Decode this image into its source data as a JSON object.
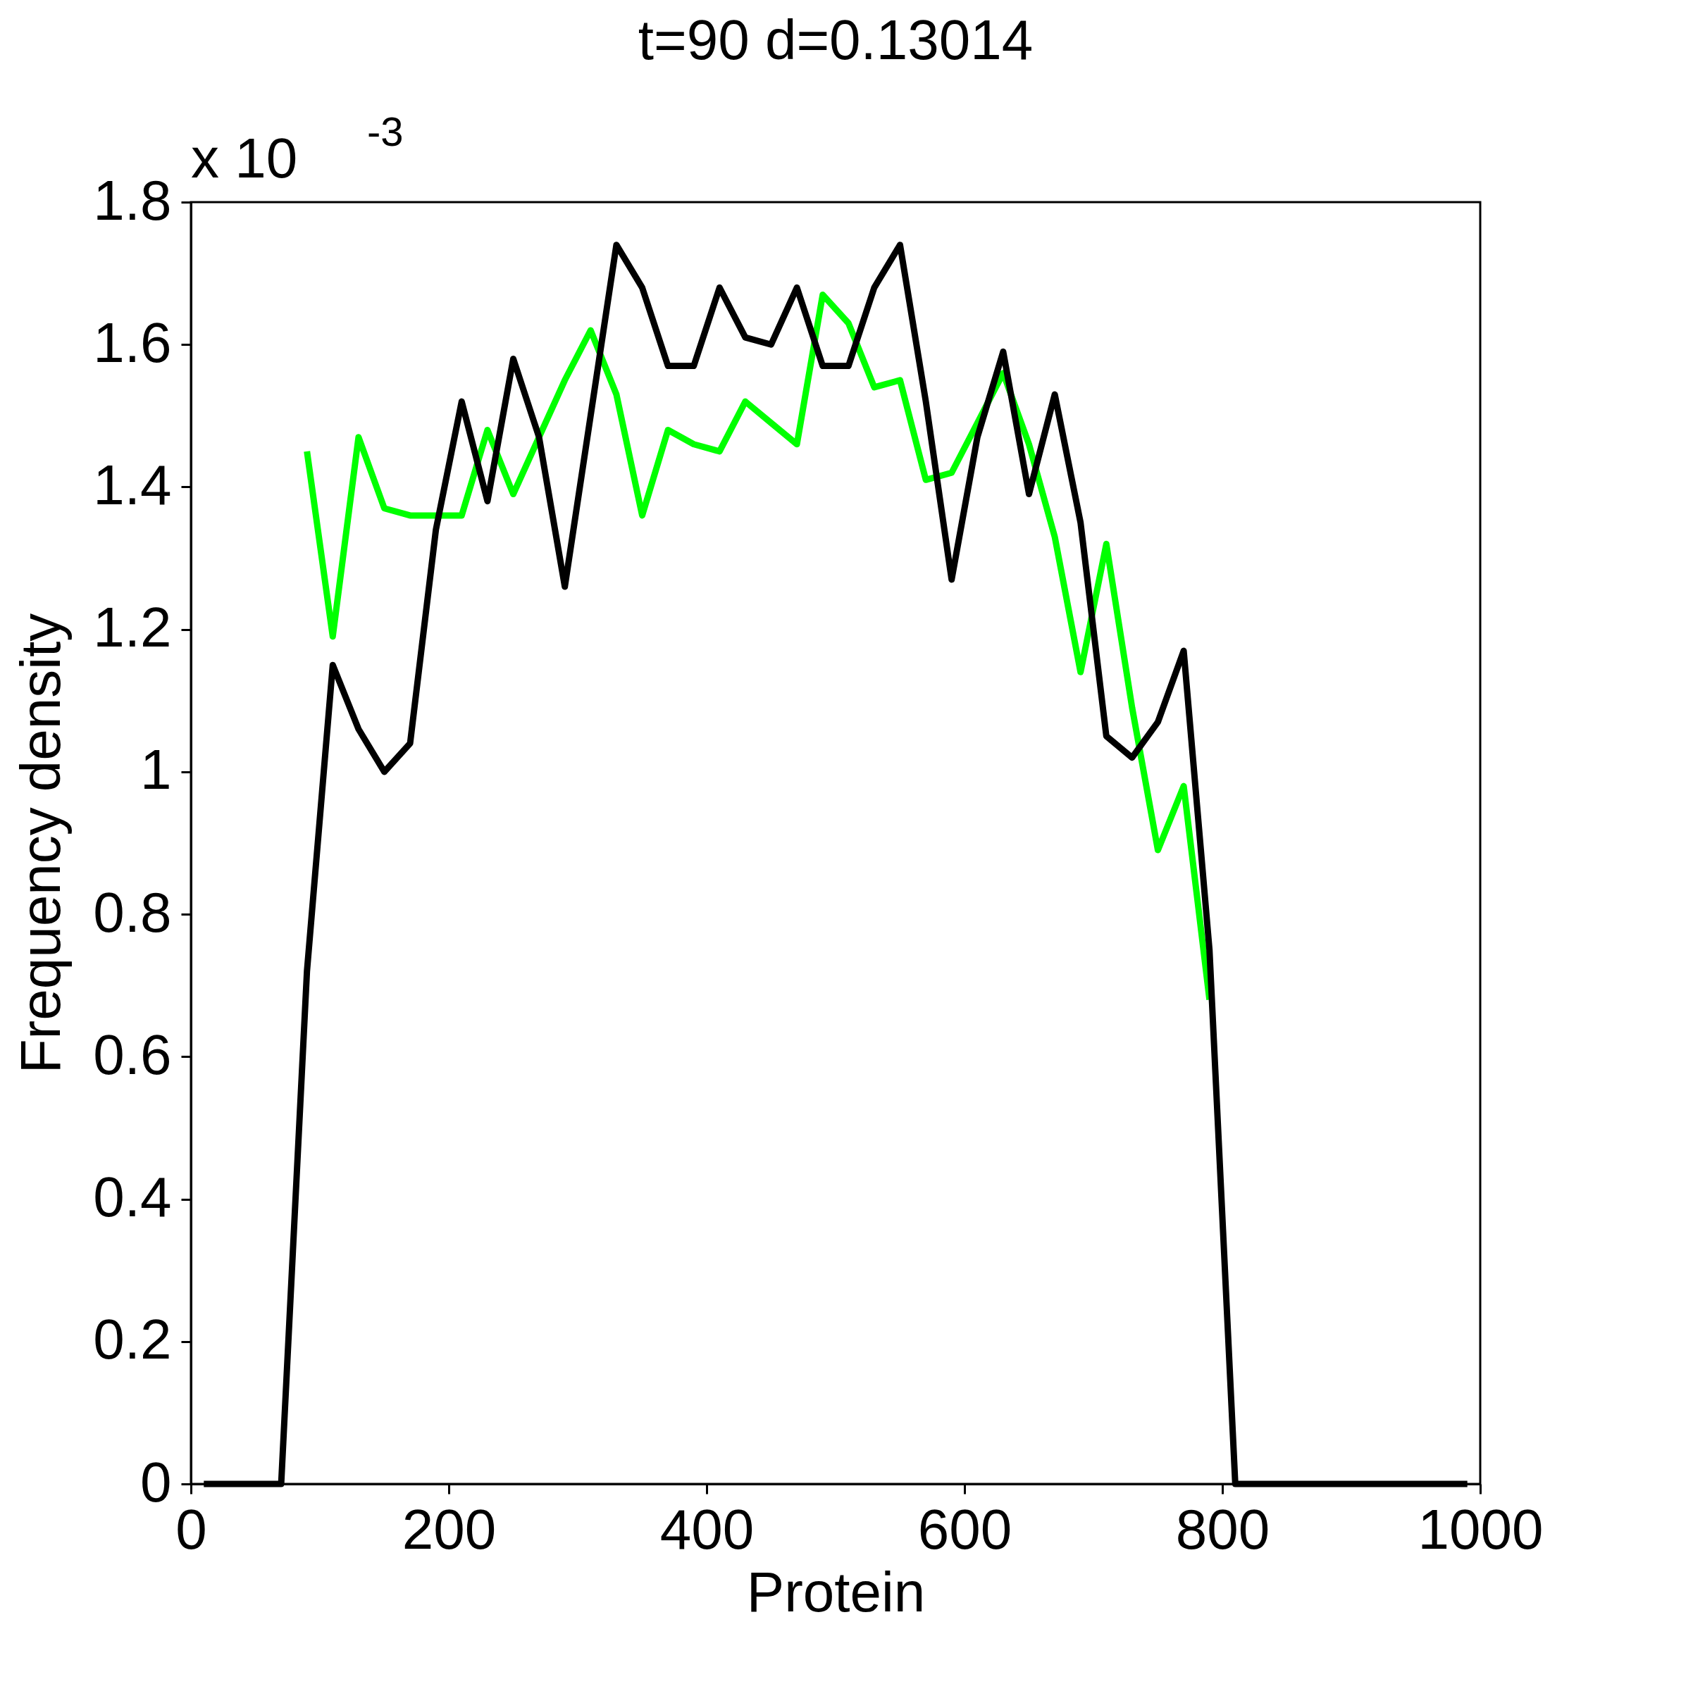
{
  "chart_data": {
    "type": "line",
    "title": "t=90 d=0.13014",
    "xlabel": "Protein",
    "ylabel": "Frequency density",
    "annotations": [
      "x 10$^{-3}$"
    ],
    "xlim": [
      0,
      1000
    ],
    "xticks": [
      0,
      200,
      400,
      600,
      800,
      1000
    ],
    "ylim": [
      0,
      1.8
    ],
    "yticks": [
      0,
      0.2,
      0.4,
      0.6,
      0.8,
      1,
      1.2,
      1.4,
      1.6,
      1.8
    ],
    "grid": false,
    "marker": "none",
    "line_style": "solid",
    "series": [
      {
        "color": "#00ff00",
        "x": [
          90,
          110,
          130,
          150,
          170,
          190,
          210,
          230,
          250,
          270,
          290,
          310,
          330,
          350,
          370,
          390,
          410,
          430,
          450,
          470,
          490,
          510,
          530,
          550,
          570,
          590,
          610,
          630,
          650,
          670,
          690,
          710,
          730,
          750,
          770,
          790
        ],
        "values": [
          1.45,
          1.19,
          1.47,
          1.37,
          1.36,
          1.36,
          1.36,
          1.48,
          1.39,
          1.47,
          1.55,
          1.62,
          1.53,
          1.36,
          1.48,
          1.46,
          1.45,
          1.52,
          1.49,
          1.46,
          1.67,
          1.63,
          1.54,
          1.55,
          1.41,
          1.42,
          1.49,
          1.56,
          1.46,
          1.33,
          1.14,
          1.32,
          1.09,
          0.89,
          0.98,
          0.68
        ]
      },
      {
        "color": "#000000",
        "x": [
          10,
          30,
          50,
          70,
          90,
          110,
          130,
          150,
          170,
          190,
          210,
          230,
          250,
          270,
          290,
          310,
          330,
          350,
          370,
          390,
          410,
          430,
          450,
          470,
          490,
          510,
          530,
          550,
          570,
          590,
          610,
          630,
          650,
          670,
          690,
          710,
          730,
          750,
          770,
          790,
          810,
          830,
          850,
          870,
          890,
          910,
          930,
          950,
          970,
          990
        ],
        "values": [
          0,
          0,
          0,
          0,
          0.72,
          1.15,
          1.06,
          1.0,
          1.04,
          1.34,
          1.52,
          1.38,
          1.58,
          1.47,
          1.26,
          1.5,
          1.74,
          1.68,
          1.57,
          1.57,
          1.68,
          1.61,
          1.6,
          1.68,
          1.57,
          1.57,
          1.68,
          1.74,
          1.52,
          1.27,
          1.47,
          1.59,
          1.39,
          1.53,
          1.35,
          1.05,
          1.02,
          1.07,
          1.17,
          0.75,
          0,
          0,
          0,
          0,
          0,
          0,
          0,
          0,
          0,
          0
        ]
      }
    ]
  }
}
